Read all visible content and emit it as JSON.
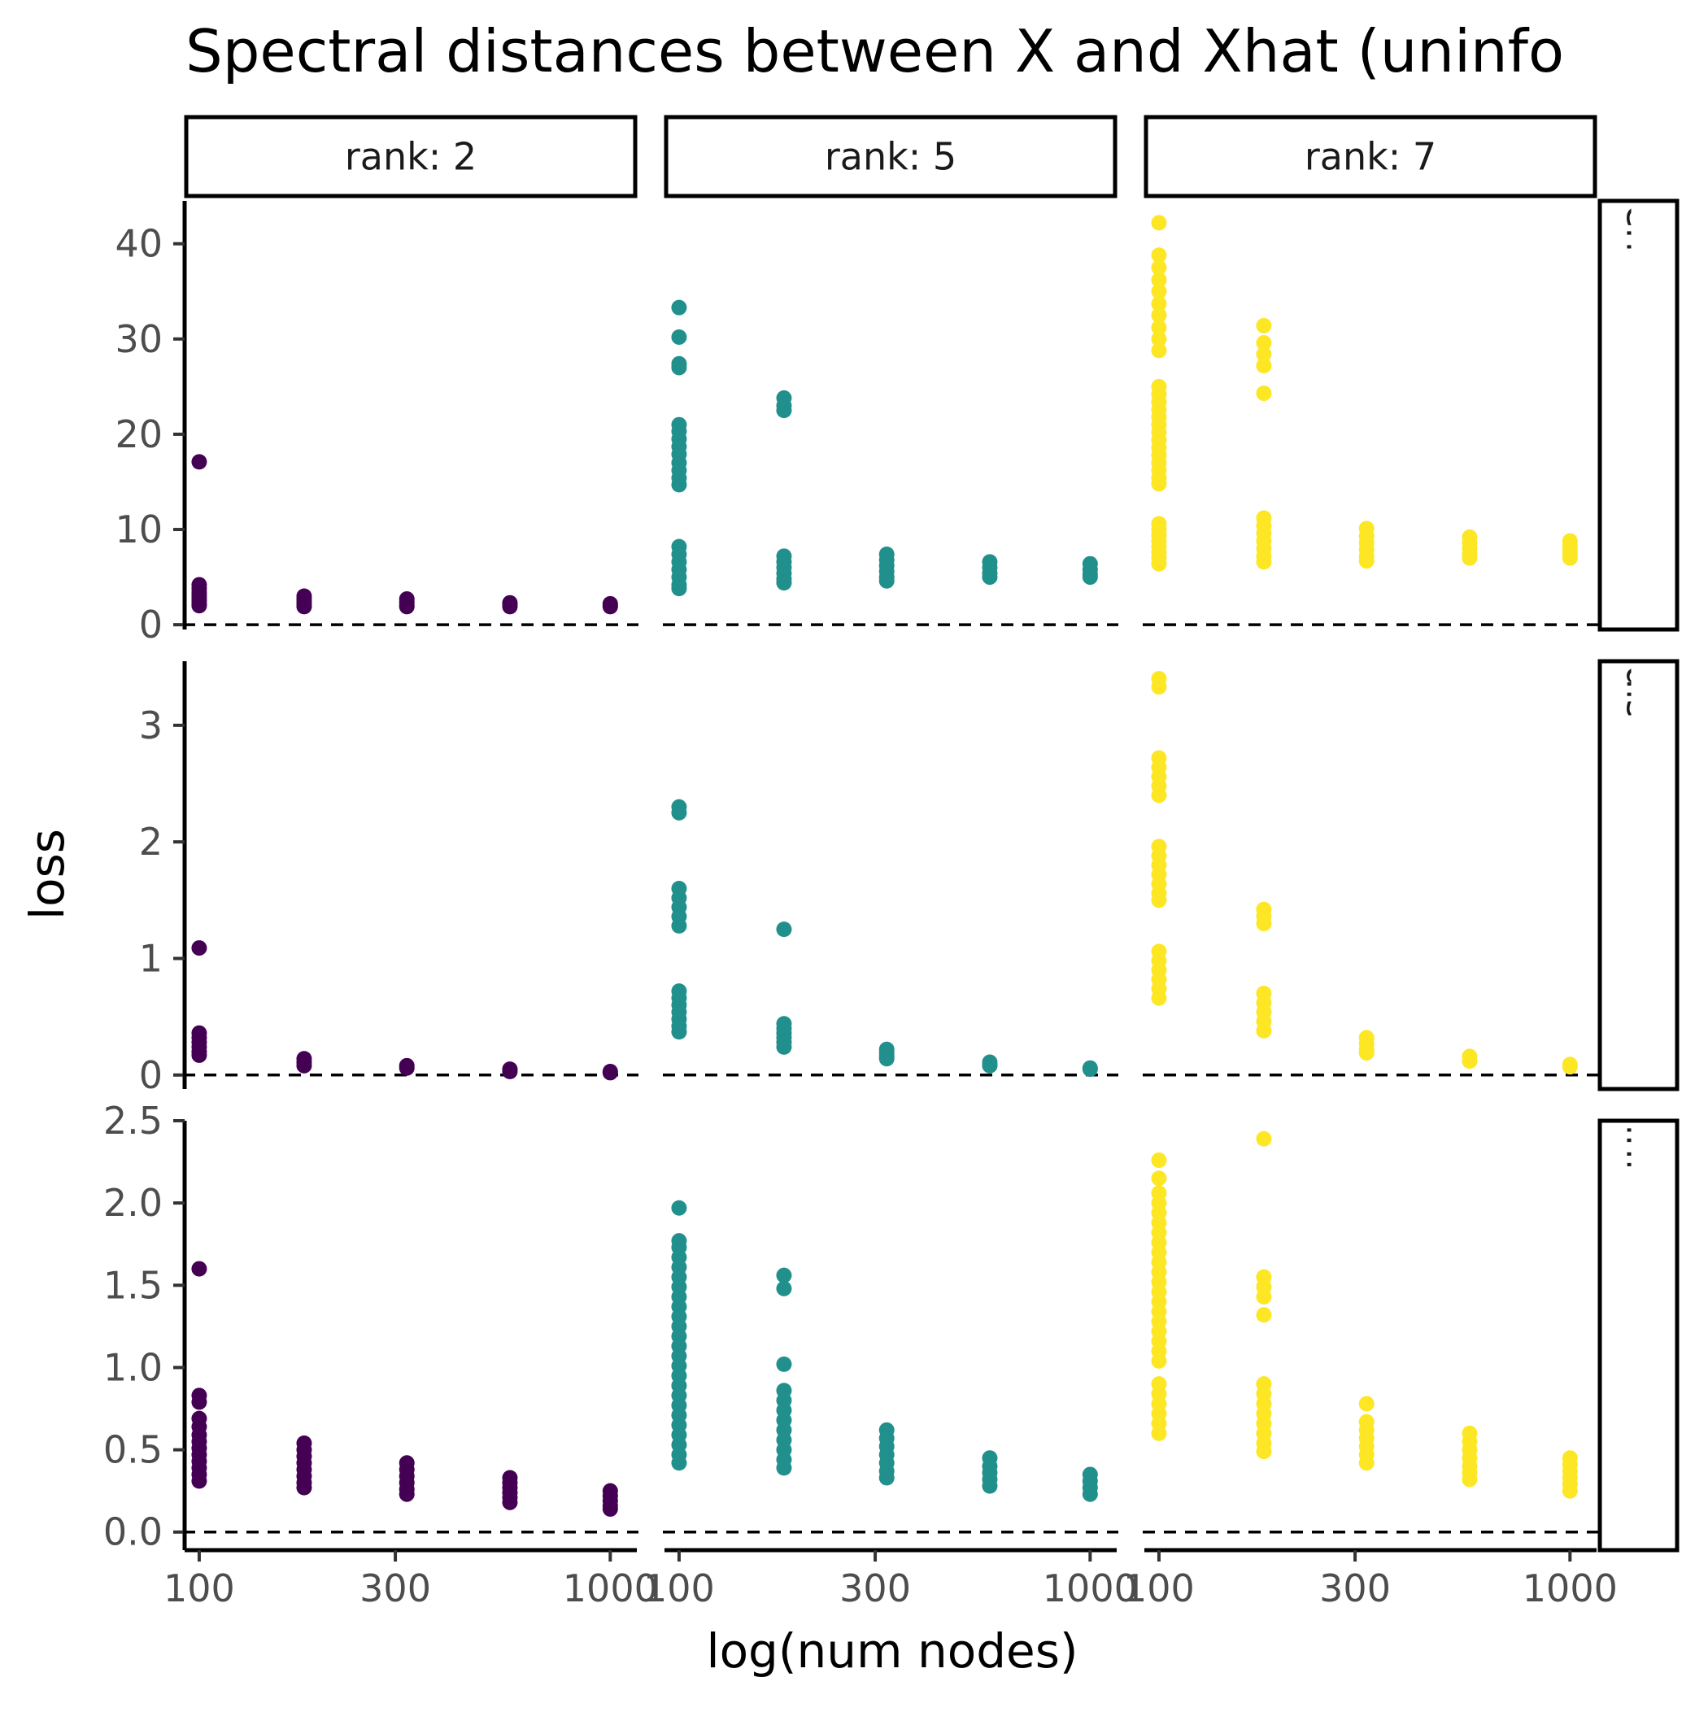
{
  "title": "Spectral distances between X and Xhat (uninfo",
  "chart_data": {
    "type": "scatter",
    "title": "Spectral distances between X and Xhat (uninfo",
    "xlabel": "log(num nodes)",
    "ylabel": "loss",
    "x_scale": "log10",
    "x_range": [
      93,
      1150
    ],
    "x_ticks": [
      100,
      300,
      1000
    ],
    "x_tick_labels": [
      "100",
      "300",
      "1000"
    ],
    "grid": false,
    "reference_line": {
      "y": 0,
      "style": "dashed"
    },
    "facet_columns": [
      "rank: 2",
      "rank: 5",
      "rank: 7"
    ],
    "series": [
      {
        "rank": 2,
        "color": "#440154"
      },
      {
        "rank": 5,
        "color": "#21908C"
      },
      {
        "rank": 7,
        "color": "#FDE725"
      }
    ],
    "facet_rows": [
      {
        "label": "enius norm of Xhat -",
        "y_range": [
          -0.5,
          44.5
        ],
        "y_ticks": [
          0,
          10,
          20,
          30,
          40
        ],
        "y_tick_labels": [
          "0",
          "10",
          "20",
          "30",
          "40"
        ],
        "points": {
          "2": {
            "100": [
              17.1,
              4.2,
              3.8,
              3.4,
              3.1,
              2.8,
              2.5,
              2.2,
              2.0
            ],
            "180": [
              3.0,
              2.7,
              2.4,
              2.1,
              1.9
            ],
            "320": [
              2.7,
              2.4,
              2.1,
              1.9
            ],
            "570": [
              2.3,
              2.1,
              1.9
            ],
            "1000": [
              2.2,
              2.0,
              1.9
            ]
          },
          "5": {
            "100": [
              33.3,
              30.2,
              27.4,
              27.0,
              21.0,
              20.3,
              19.5,
              18.7,
              17.9,
              17.0,
              16.2,
              15.4,
              14.7,
              8.2,
              7.4,
              6.6,
              5.8,
              5.0,
              4.2,
              3.8
            ],
            "180": [
              23.8,
              23.0,
              22.5,
              7.2,
              6.6,
              6.0,
              5.4,
              4.8,
              4.4
            ],
            "320": [
              7.4,
              6.8,
              6.2,
              5.6,
              5.0,
              4.6
            ],
            "570": [
              6.6,
              6.0,
              5.4,
              5.0
            ],
            "1000": [
              6.4,
              5.8,
              5.3,
              5.0
            ]
          },
          "7": {
            "100": [
              42.2,
              38.8,
              37.5,
              36.2,
              35.0,
              33.7,
              32.5,
              31.2,
              30.0,
              28.8,
              25.0,
              24.2,
              23.4,
              22.6,
              21.8,
              21.0,
              20.2,
              19.4,
              18.6,
              17.8,
              17.0,
              16.2,
              15.4,
              14.8,
              10.6,
              10.0,
              9.4,
              8.8,
              8.2,
              7.6,
              7.0,
              6.4
            ],
            "180": [
              31.4,
              29.6,
              28.4,
              27.2,
              24.3,
              11.2,
              10.4,
              9.6,
              8.8,
              8.0,
              7.2,
              6.6
            ],
            "320": [
              10.1,
              9.3,
              8.6,
              7.9,
              7.2,
              6.7
            ],
            "570": [
              9.2,
              8.6,
              8.0,
              7.4,
              7.0
            ],
            "1000": [
              8.8,
              8.3,
              7.8,
              7.4,
              7.0
            ]
          }
        }
      },
      {
        "label": "distance between X",
        "y_range": [
          -0.12,
          3.55
        ],
        "y_ticks": [
          0,
          1,
          2,
          3
        ],
        "y_tick_labels": [
          "0",
          "1",
          "2",
          "3"
        ],
        "points": {
          "2": {
            "100": [
              1.09,
              0.36,
              0.32,
              0.28,
              0.24,
              0.2,
              0.17
            ],
            "180": [
              0.14,
              0.11,
              0.08
            ],
            "320": [
              0.08,
              0.06
            ],
            "570": [
              0.05,
              0.03
            ],
            "1000": [
              0.03,
              0.02
            ]
          },
          "5": {
            "100": [
              2.3,
              2.25,
              1.6,
              1.52,
              1.44,
              1.36,
              1.28,
              0.72,
              0.66,
              0.6,
              0.54,
              0.48,
              0.42,
              0.37
            ],
            "180": [
              1.25,
              0.44,
              0.4,
              0.36,
              0.32,
              0.28,
              0.24
            ],
            "320": [
              0.22,
              0.19,
              0.16,
              0.14
            ],
            "570": [
              0.11,
              0.09,
              0.08
            ],
            "1000": [
              0.06,
              0.05
            ]
          },
          "7": {
            "100": [
              3.4,
              3.33,
              2.72,
              2.64,
              2.56,
              2.48,
              2.4,
              1.96,
              1.88,
              1.8,
              1.72,
              1.64,
              1.56,
              1.5,
              1.06,
              0.98,
              0.9,
              0.82,
              0.74,
              0.66
            ],
            "180": [
              1.42,
              1.36,
              1.3,
              0.7,
              0.62,
              0.54,
              0.46,
              0.38
            ],
            "320": [
              0.32,
              0.27,
              0.22,
              0.19
            ],
            "570": [
              0.16,
              0.12
            ],
            "1000": [
              0.09,
              0.07
            ]
          }
        }
      },
      {
        "label": "infinity norm of Xha",
        "y_range": [
          -0.11,
          2.5
        ],
        "y_ticks": [
          0,
          0.5,
          1,
          1.5,
          2,
          2.5
        ],
        "y_tick_labels": [
          "0.0",
          "0.5",
          "1.0",
          "1.5",
          "2.0",
          "2.5"
        ],
        "points": {
          "2": {
            "100": [
              1.6,
              0.83,
              0.79,
              0.69,
              0.64,
              0.59,
              0.55,
              0.51,
              0.47,
              0.43,
              0.39,
              0.35,
              0.31
            ],
            "180": [
              0.54,
              0.5,
              0.46,
              0.42,
              0.38,
              0.34,
              0.3,
              0.27
            ],
            "320": [
              0.42,
              0.38,
              0.34,
              0.3,
              0.26,
              0.23
            ],
            "570": [
              0.33,
              0.3,
              0.27,
              0.24,
              0.21,
              0.18
            ],
            "1000": [
              0.25,
              0.22,
              0.19,
              0.16,
              0.14
            ]
          },
          "5": {
            "100": [
              1.97,
              1.77,
              1.73,
              1.67,
              1.61,
              1.55,
              1.49,
              1.43,
              1.37,
              1.31,
              1.25,
              1.19,
              1.13,
              1.07,
              1.01,
              0.95,
              0.89,
              0.83,
              0.77,
              0.71,
              0.65,
              0.59,
              0.53,
              0.47,
              0.42
            ],
            "180": [
              1.56,
              1.48,
              1.02,
              0.86,
              0.8,
              0.74,
              0.68,
              0.62,
              0.56,
              0.5,
              0.44,
              0.39
            ],
            "320": [
              0.62,
              0.57,
              0.52,
              0.47,
              0.42,
              0.37,
              0.33
            ],
            "570": [
              0.45,
              0.4,
              0.36,
              0.32,
              0.28
            ],
            "1000": [
              0.35,
              0.31,
              0.27,
              0.23
            ]
          },
          "7": {
            "100": [
              2.26,
              2.15,
              2.06,
              2.0,
              1.94,
              1.88,
              1.82,
              1.76,
              1.7,
              1.64,
              1.58,
              1.52,
              1.46,
              1.4,
              1.34,
              1.28,
              1.22,
              1.16,
              1.1,
              1.04,
              0.9,
              0.84,
              0.78,
              0.72,
              0.66,
              0.6
            ],
            "180": [
              2.39,
              1.55,
              1.49,
              1.43,
              1.32,
              0.9,
              0.84,
              0.78,
              0.72,
              0.66,
              0.6,
              0.54,
              0.49
            ],
            "320": [
              0.78,
              0.67,
              0.62,
              0.57,
              0.52,
              0.47,
              0.42
            ],
            "570": [
              0.6,
              0.55,
              0.5,
              0.45,
              0.4,
              0.36,
              0.32
            ],
            "1000": [
              0.45,
              0.41,
              0.37,
              0.33,
              0.29,
              0.25
            ]
          }
        }
      }
    ]
  }
}
